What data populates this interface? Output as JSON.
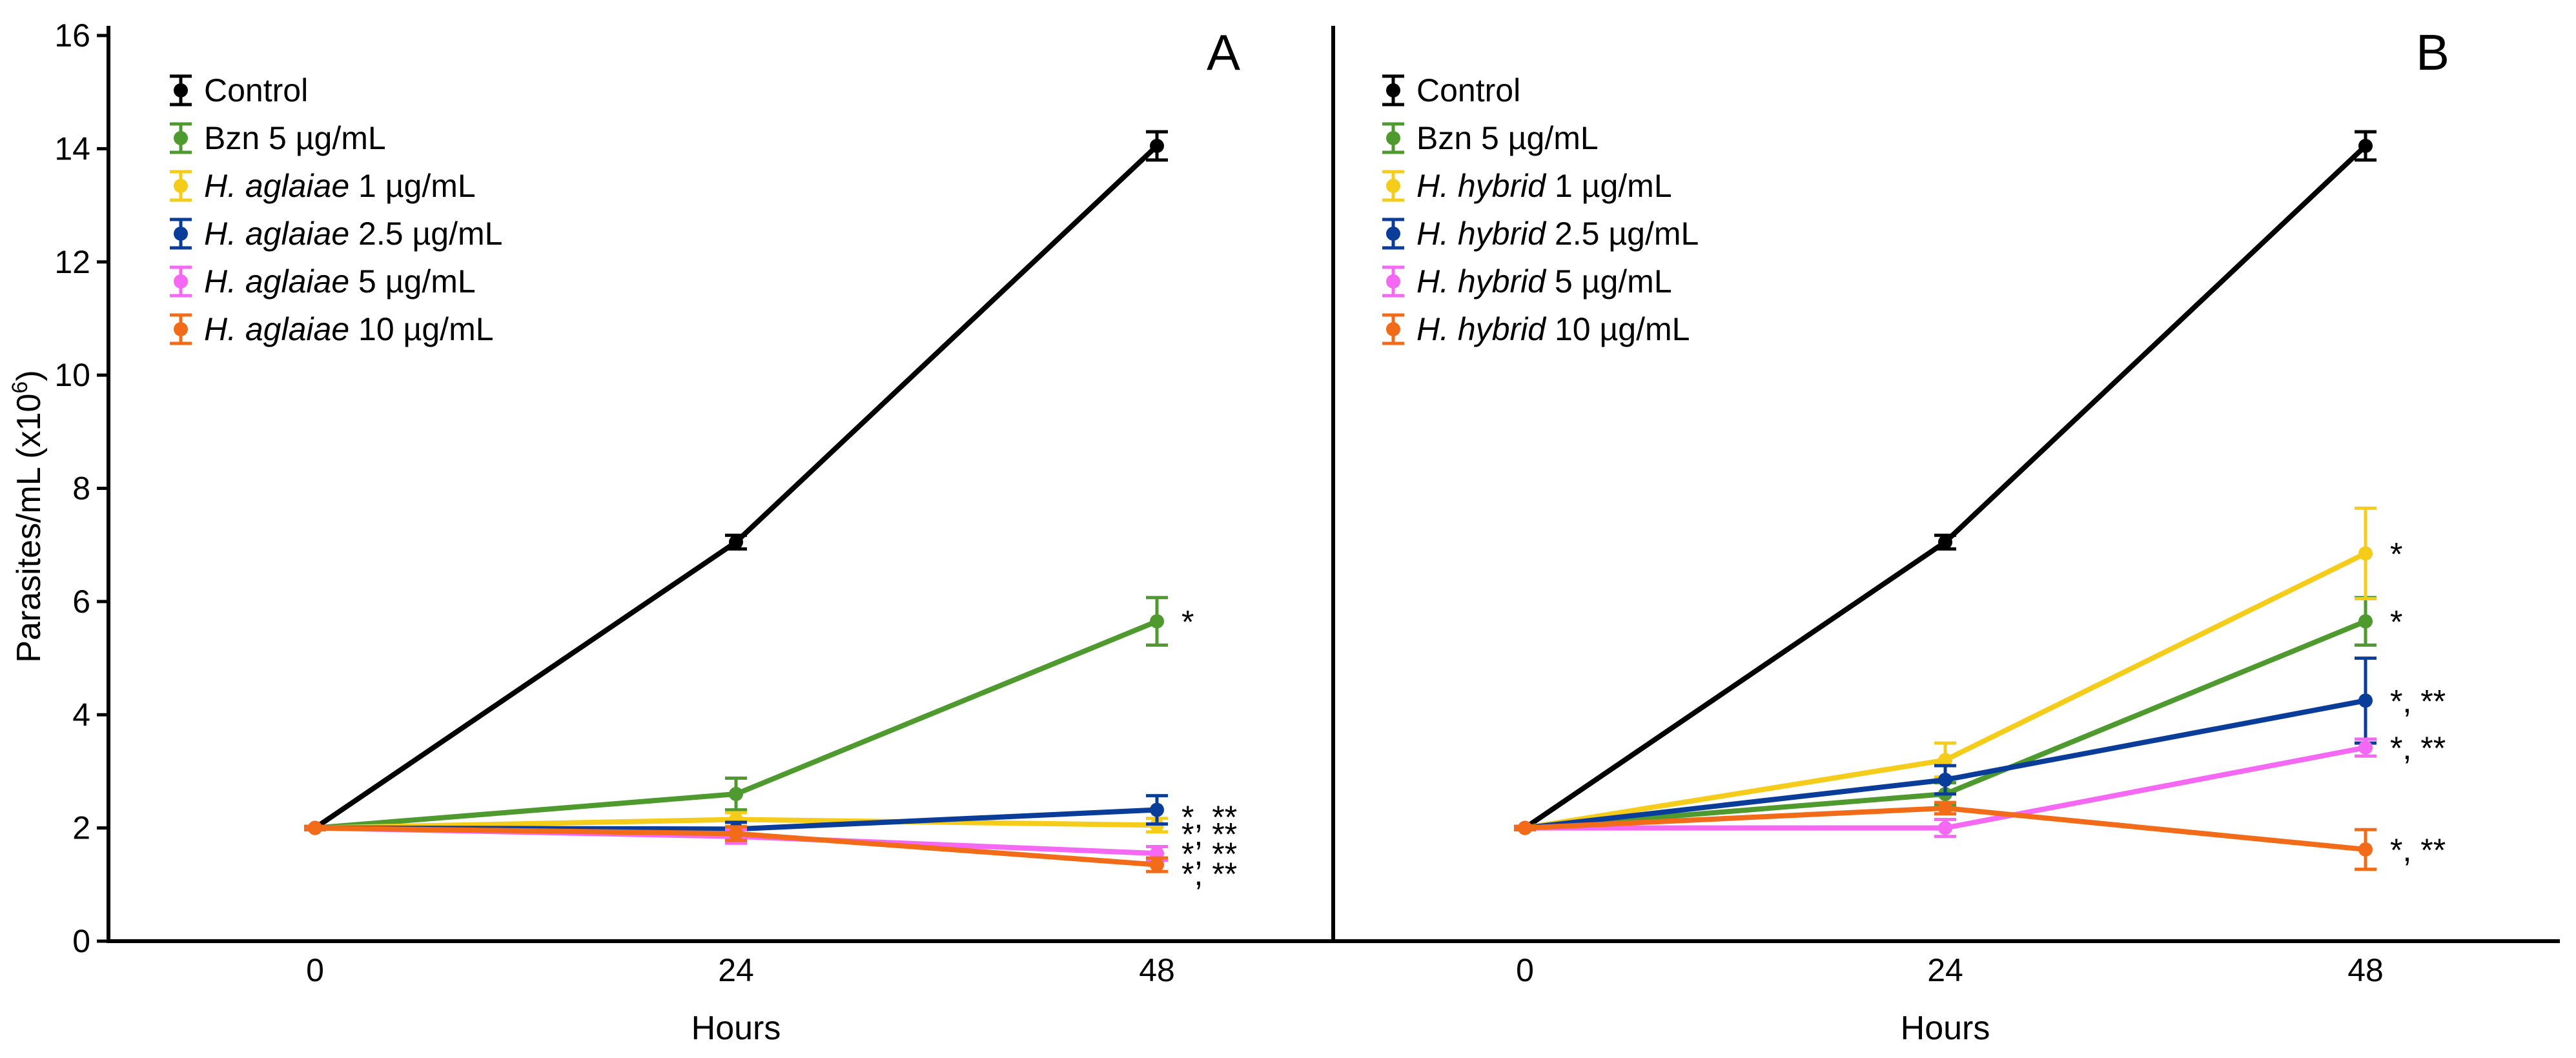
{
  "chart_data": {
    "type": "line",
    "ylabel_main": "Parasites/mL (x10",
    "ylabel_exp": "6",
    "ylabel_close": ")",
    "xlabel": "Hours",
    "ylim": [
      0,
      16
    ],
    "yticks": [
      "0",
      "2",
      "4",
      "6",
      "8",
      "10",
      "12",
      "14",
      "16"
    ],
    "categories": [
      "0",
      "24",
      "48"
    ],
    "panels": [
      {
        "label": "A",
        "series": [
          {
            "name_italic": "",
            "name_rest": "Control",
            "color": "#000000",
            "values": [
              2.0,
              7.05,
              14.05
            ],
            "errors": [
              0.03,
              0.12,
              0.25
            ]
          },
          {
            "name_italic": "",
            "name_rest": "Bzn 5 µg/mL",
            "color": "#4E9A2E",
            "values": [
              2.0,
              2.6,
              5.65
            ],
            "errors": [
              0.03,
              0.28,
              0.42
            ]
          },
          {
            "name_italic": "H. aglaiae",
            "name_rest": " 1 µg/mL",
            "color": "#F5CC1A",
            "values": [
              2.0,
              2.15,
              2.05
            ],
            "errors": [
              0.03,
              0.12,
              0.12
            ]
          },
          {
            "name_italic": "H. aglaiae",
            "name_rest": " 2.5 µg/mL",
            "color": "#0A3D99",
            "values": [
              2.0,
              1.98,
              2.32
            ],
            "errors": [
              0.03,
              0.12,
              0.25
            ]
          },
          {
            "name_italic": "H. aglaiae",
            "name_rest": " 5 µg/mL",
            "color": "#F468F4",
            "values": [
              2.0,
              1.85,
              1.55
            ],
            "errors": [
              0.03,
              0.12,
              0.12
            ]
          },
          {
            "name_italic": "H. aglaiae",
            "name_rest": " 10 µg/mL",
            "color": "#F26B18",
            "values": [
              2.0,
              1.9,
              1.35
            ],
            "errors": [
              0.03,
              0.12,
              0.12
            ]
          }
        ],
        "annotations": [
          {
            "text": "*",
            "y": 5.65
          },
          {
            "text": "*, **",
            "y": 2.2
          },
          {
            "text": "*, **",
            "y": 1.9
          },
          {
            "text": "*, **",
            "y": 1.55
          },
          {
            "text": "*, **",
            "y": 1.2
          }
        ]
      },
      {
        "label": "B",
        "series": [
          {
            "name_italic": "",
            "name_rest": "Control",
            "color": "#000000",
            "values": [
              2.0,
              7.05,
              14.05
            ],
            "errors": [
              0.03,
              0.12,
              0.25
            ]
          },
          {
            "name_italic": "",
            "name_rest": "Bzn 5 µg/mL",
            "color": "#4E9A2E",
            "values": [
              2.0,
              2.6,
              5.65
            ],
            "errors": [
              0.03,
              0.2,
              0.42
            ]
          },
          {
            "name_italic": "H. hybrid",
            "name_rest": " 1 µg/mL",
            "color": "#F5CC1A",
            "values": [
              2.0,
              3.2,
              6.85
            ],
            "errors": [
              0.03,
              0.3,
              0.8
            ]
          },
          {
            "name_italic": "H. hybrid",
            "name_rest": " 2.5 µg/mL",
            "color": "#0A3D99",
            "values": [
              2.0,
              2.85,
              4.25
            ],
            "errors": [
              0.03,
              0.25,
              0.75
            ]
          },
          {
            "name_italic": "H. hybrid",
            "name_rest": " 5 µg/mL",
            "color": "#F468F4",
            "values": [
              2.0,
              2.0,
              3.42
            ],
            "errors": [
              0.03,
              0.15,
              0.15
            ]
          },
          {
            "name_italic": "H. hybrid",
            "name_rest": " 10 µg/mL",
            "color": "#F26B18",
            "values": [
              2.0,
              2.35,
              1.62
            ],
            "errors": [
              0.03,
              0.1,
              0.35
            ]
          }
        ],
        "annotations": [
          {
            "text": "*",
            "y": 6.85
          },
          {
            "text": "*",
            "y": 5.65
          },
          {
            "text": "*, **",
            "y": 4.25
          },
          {
            "text": "*, **",
            "y": 3.42
          },
          {
            "text": "*, **",
            "y": 1.62
          }
        ]
      }
    ]
  }
}
